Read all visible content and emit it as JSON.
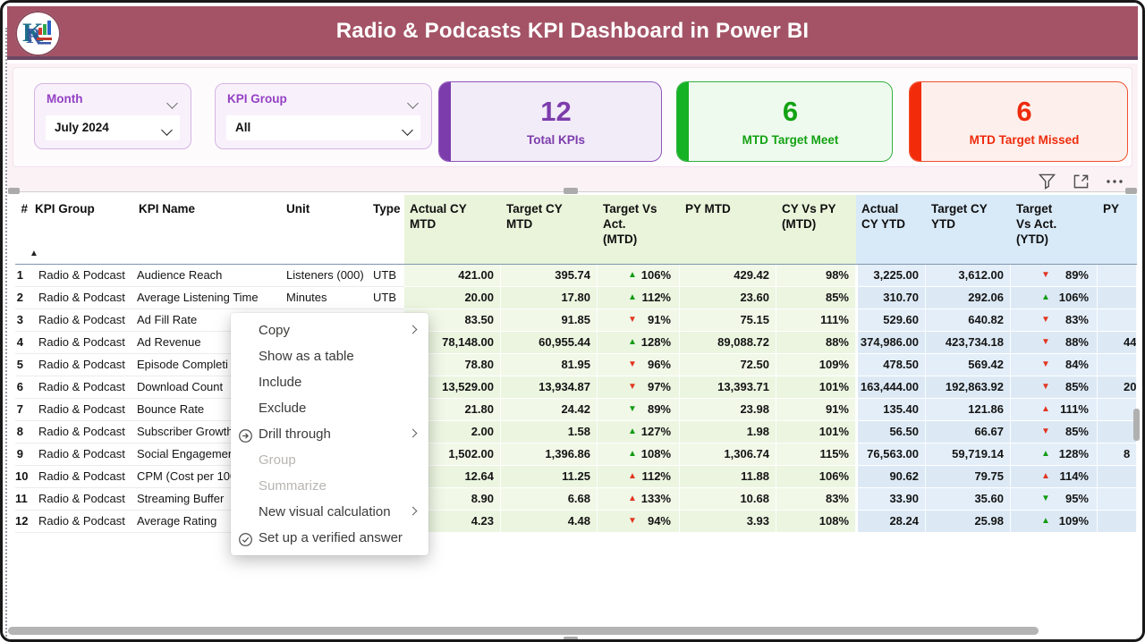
{
  "title": "Radio & Podcasts KPI Dashboard in Power BI",
  "slicers": {
    "month": {
      "label": "Month",
      "value": "July 2024"
    },
    "kpi_group": {
      "label": "KPI Group",
      "value": "All"
    }
  },
  "kpi_cards": [
    {
      "value": "12",
      "label": "Total KPIs",
      "accent": "#7d3cac"
    },
    {
      "value": "6",
      "label": "MTD Target Meet",
      "accent": "#13a213"
    },
    {
      "value": "6",
      "label": "MTD Target Missed",
      "accent": "#ee2b0d"
    }
  ],
  "toolbar_icons": [
    "filter",
    "focus-mode",
    "more-options"
  ],
  "colors": {
    "titlebar": "#a45366",
    "titlebar_border": "#6b4764",
    "mtd_zone": "#e9f4da",
    "ytd_zone": "#d8e9f7",
    "triangle_good": "#129b12",
    "triangle_bad": "#e2351f"
  },
  "table": {
    "sort_indicator": "▲",
    "columns": [
      {
        "key": "num",
        "label": "#"
      },
      {
        "key": "group",
        "label": "KPI Group"
      },
      {
        "key": "name",
        "label": "KPI Name"
      },
      {
        "key": "unit",
        "label": "Unit"
      },
      {
        "key": "type",
        "label": "Type"
      },
      {
        "key": "actual_mtd",
        "label": "Actual CY\nMTD",
        "zone": "mtd"
      },
      {
        "key": "target_mtd",
        "label": "Target CY\nMTD",
        "zone": "mtd"
      },
      {
        "key": "tva_mtd",
        "label": "Target Vs\nAct.\n(MTD)",
        "zone": "mtd"
      },
      {
        "key": "py_mtd",
        "label": "PY MTD",
        "zone": "mtd"
      },
      {
        "key": "cy_vs_py_mtd",
        "label": "CY Vs PY\n(MTD)",
        "zone": "mtd"
      },
      {
        "key": "actual_ytd",
        "label": "Actual\nCY YTD",
        "zone": "ytd"
      },
      {
        "key": "target_ytd",
        "label": "Target CY\nYTD",
        "zone": "ytd"
      },
      {
        "key": "tva_ytd",
        "label": "Target\nVs Act.\n(YTD)",
        "zone": "ytd"
      },
      {
        "key": "py_ytd",
        "label": "PY",
        "zone": "ytd"
      }
    ],
    "rows": [
      {
        "num": "1",
        "group": "Radio & Podcast",
        "name": "Audience Reach",
        "unit": "Listeners (000)",
        "type": "UTB",
        "actual_mtd": "421.00",
        "target_mtd": "395.74",
        "tva_mtd": {
          "dir": "up",
          "tone": "good",
          "pct": "106%"
        },
        "py_mtd": "429.42",
        "cy_vs_py_mtd": "98%",
        "actual_ytd": "3,225.00",
        "target_ytd": "3,612.00",
        "tva_ytd": {
          "dir": "down",
          "tone": "bad",
          "pct": "89%"
        },
        "py_ytd": ""
      },
      {
        "num": "2",
        "group": "Radio & Podcast",
        "name": "Average Listening Time",
        "unit": "Minutes",
        "type": "UTB",
        "actual_mtd": "20.00",
        "target_mtd": "17.80",
        "tva_mtd": {
          "dir": "up",
          "tone": "good",
          "pct": "112%"
        },
        "py_mtd": "23.60",
        "cy_vs_py_mtd": "85%",
        "actual_ytd": "310.70",
        "target_ytd": "292.06",
        "tva_ytd": {
          "dir": "up",
          "tone": "good",
          "pct": "106%"
        },
        "py_ytd": ""
      },
      {
        "num": "3",
        "group": "Radio & Podcast",
        "name": "Ad Fill Rate",
        "unit": "",
        "type": "",
        "actual_mtd": "83.50",
        "target_mtd": "91.85",
        "tva_mtd": {
          "dir": "down",
          "tone": "bad",
          "pct": "91%"
        },
        "py_mtd": "75.15",
        "cy_vs_py_mtd": "111%",
        "actual_ytd": "529.60",
        "target_ytd": "640.82",
        "tva_ytd": {
          "dir": "down",
          "tone": "bad",
          "pct": "83%"
        },
        "py_ytd": ""
      },
      {
        "num": "4",
        "group": "Radio & Podcast",
        "name": "Ad Revenue",
        "unit": "",
        "type": "",
        "actual_mtd": "78,148.00",
        "target_mtd": "60,955.44",
        "tva_mtd": {
          "dir": "up",
          "tone": "good",
          "pct": "128%"
        },
        "py_mtd": "89,088.72",
        "cy_vs_py_mtd": "88%",
        "actual_ytd": "374,986.00",
        "target_ytd": "423,734.18",
        "tva_ytd": {
          "dir": "down",
          "tone": "bad",
          "pct": "88%"
        },
        "py_ytd": "44"
      },
      {
        "num": "5",
        "group": "Radio & Podcast",
        "name": "Episode Completi",
        "unit": "",
        "type": "",
        "actual_mtd": "78.80",
        "target_mtd": "81.95",
        "tva_mtd": {
          "dir": "down",
          "tone": "bad",
          "pct": "96%"
        },
        "py_mtd": "72.50",
        "cy_vs_py_mtd": "109%",
        "actual_ytd": "478.50",
        "target_ytd": "569.42",
        "tva_ytd": {
          "dir": "down",
          "tone": "bad",
          "pct": "84%"
        },
        "py_ytd": ""
      },
      {
        "num": "6",
        "group": "Radio & Podcast",
        "name": "Download Count",
        "unit": "",
        "type": "",
        "actual_mtd": "13,529.00",
        "target_mtd": "13,934.87",
        "tva_mtd": {
          "dir": "down",
          "tone": "bad",
          "pct": "97%"
        },
        "py_mtd": "13,393.71",
        "cy_vs_py_mtd": "101%",
        "actual_ytd": "163,444.00",
        "target_ytd": "192,863.92",
        "tva_ytd": {
          "dir": "down",
          "tone": "bad",
          "pct": "85%"
        },
        "py_ytd": "20"
      },
      {
        "num": "7",
        "group": "Radio & Podcast",
        "name": "Bounce Rate",
        "unit": "",
        "type": "",
        "actual_mtd": "21.80",
        "target_mtd": "24.42",
        "tva_mtd": {
          "dir": "down",
          "tone": "good",
          "pct": "89%"
        },
        "py_mtd": "23.98",
        "cy_vs_py_mtd": "91%",
        "actual_ytd": "135.40",
        "target_ytd": "121.86",
        "tva_ytd": {
          "dir": "up",
          "tone": "bad",
          "pct": "111%"
        },
        "py_ytd": ""
      },
      {
        "num": "8",
        "group": "Radio & Podcast",
        "name": "Subscriber Growth",
        "unit": "",
        "type": "",
        "actual_mtd": "2.00",
        "target_mtd": "1.58",
        "tva_mtd": {
          "dir": "up",
          "tone": "good",
          "pct": "127%"
        },
        "py_mtd": "1.98",
        "cy_vs_py_mtd": "101%",
        "actual_ytd": "56.50",
        "target_ytd": "66.67",
        "tva_ytd": {
          "dir": "down",
          "tone": "bad",
          "pct": "85%"
        },
        "py_ytd": ""
      },
      {
        "num": "9",
        "group": "Radio & Podcast",
        "name": "Social Engagement",
        "unit": "",
        "type": "",
        "actual_mtd": "1,502.00",
        "target_mtd": "1,396.86",
        "tva_mtd": {
          "dir": "up",
          "tone": "good",
          "pct": "108%"
        },
        "py_mtd": "1,306.74",
        "cy_vs_py_mtd": "115%",
        "actual_ytd": "76,563.00",
        "target_ytd": "59,719.14",
        "tva_ytd": {
          "dir": "up",
          "tone": "good",
          "pct": "128%"
        },
        "py_ytd": "8"
      },
      {
        "num": "10",
        "group": "Radio & Podcast",
        "name": "CPM (Cost per 100",
        "unit": "",
        "type": "",
        "actual_mtd": "12.64",
        "target_mtd": "11.25",
        "tva_mtd": {
          "dir": "up",
          "tone": "bad",
          "pct": "112%"
        },
        "py_mtd": "11.88",
        "cy_vs_py_mtd": "106%",
        "actual_ytd": "90.62",
        "target_ytd": "79.75",
        "tva_ytd": {
          "dir": "up",
          "tone": "bad",
          "pct": "114%"
        },
        "py_ytd": ""
      },
      {
        "num": "11",
        "group": "Radio & Podcast",
        "name": "Streaming Buffer",
        "unit": "",
        "type": "",
        "actual_mtd": "8.90",
        "target_mtd": "6.68",
        "tva_mtd": {
          "dir": "up",
          "tone": "bad",
          "pct": "133%"
        },
        "py_mtd": "10.68",
        "cy_vs_py_mtd": "83%",
        "actual_ytd": "33.90",
        "target_ytd": "35.60",
        "tva_ytd": {
          "dir": "down",
          "tone": "good",
          "pct": "95%"
        },
        "py_ytd": ""
      },
      {
        "num": "12",
        "group": "Radio & Podcast",
        "name": "Average Rating",
        "unit": "",
        "type": "",
        "actual_mtd": "4.23",
        "target_mtd": "4.48",
        "tva_mtd": {
          "dir": "down",
          "tone": "bad",
          "pct": "94%"
        },
        "py_mtd": "3.93",
        "cy_vs_py_mtd": "108%",
        "actual_ytd": "28.24",
        "target_ytd": "25.98",
        "tva_ytd": {
          "dir": "up",
          "tone": "good",
          "pct": "109%"
        },
        "py_ytd": ""
      }
    ]
  },
  "context_menu": {
    "items": [
      {
        "label": "Copy",
        "submenu": true
      },
      {
        "label": "Show as a table"
      },
      {
        "label": "Include"
      },
      {
        "label": "Exclude"
      },
      {
        "label": "Drill through",
        "icon": "drill-through",
        "submenu": true
      },
      {
        "label": "Group",
        "disabled": true
      },
      {
        "label": "Summarize",
        "disabled": true
      },
      {
        "label": "New visual calculation",
        "submenu": true
      },
      {
        "label": "Set up a verified answer",
        "icon": "verified-answer"
      }
    ]
  }
}
